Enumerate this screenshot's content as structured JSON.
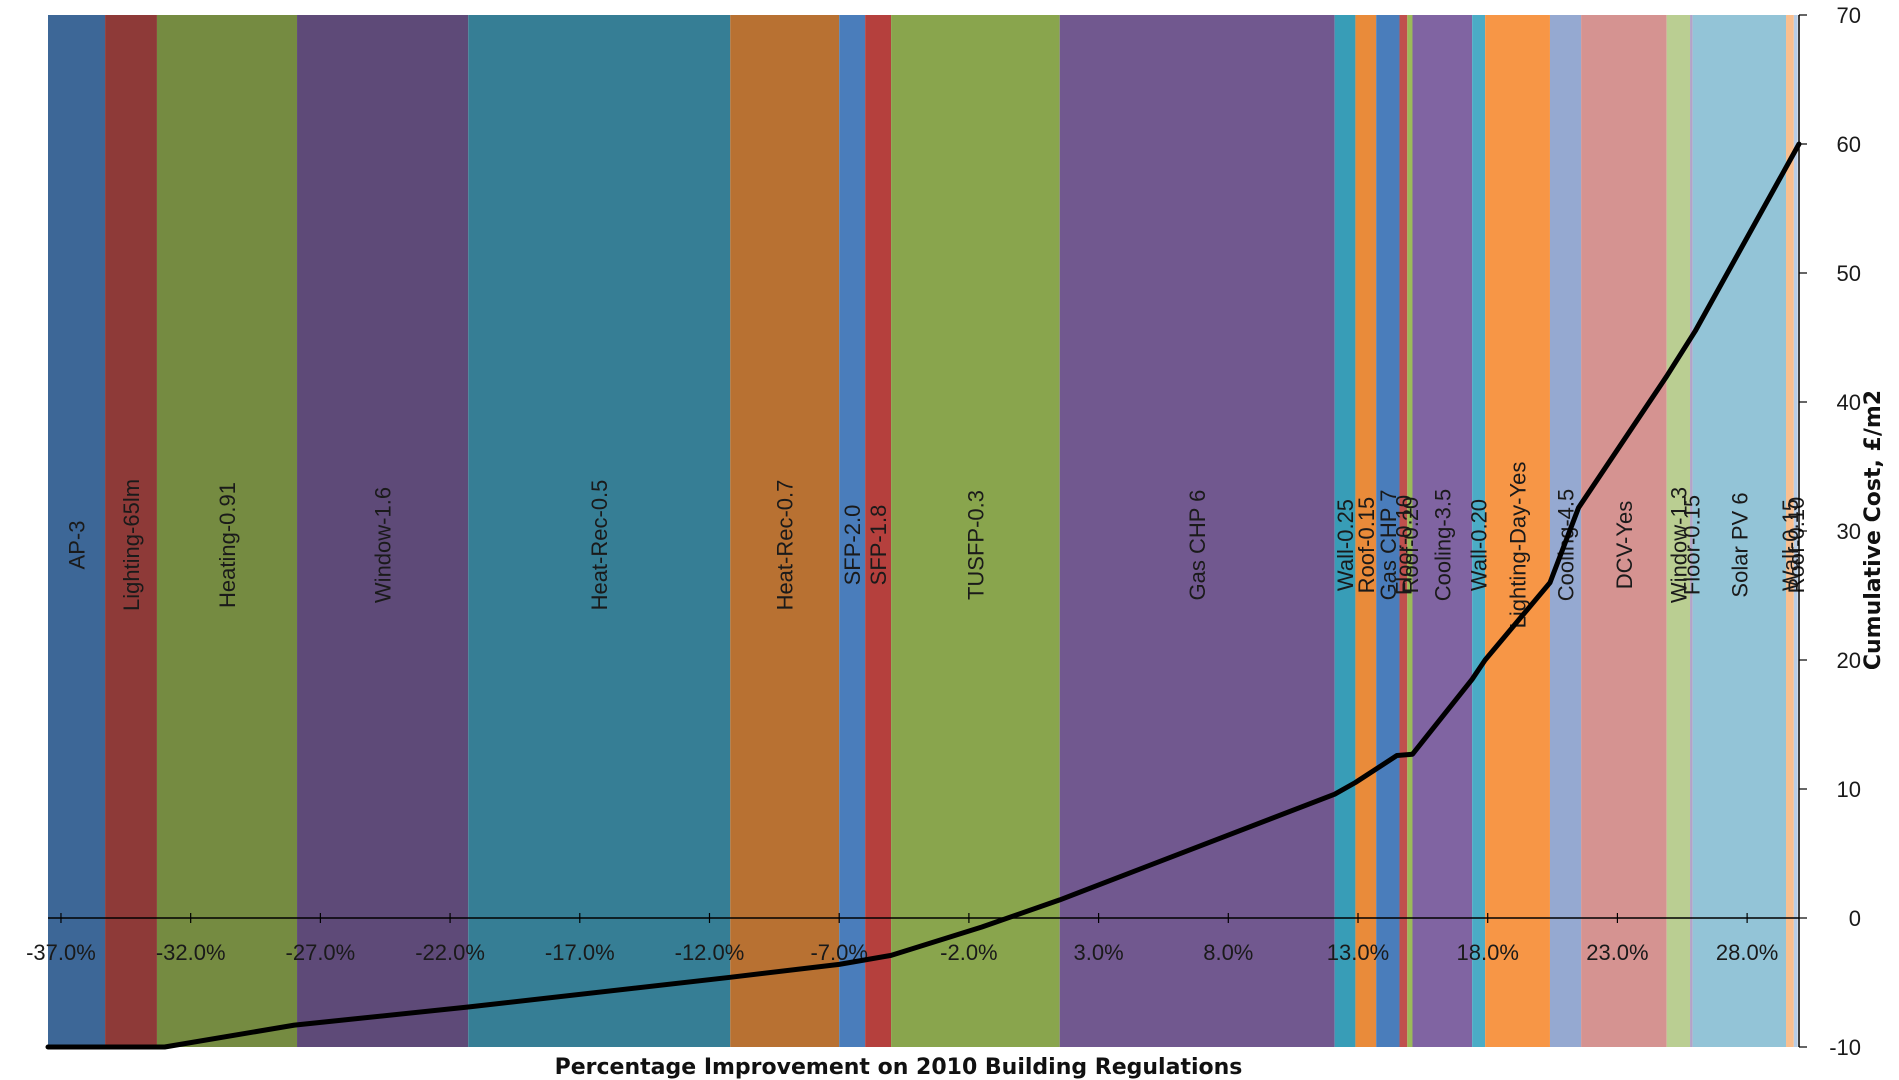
{
  "chart_data": {
    "type": "bar",
    "x_axis": {
      "title": "Percentage Improvement on 2010 Building Regulations",
      "range": [
        -37.5,
        30.0
      ],
      "ticks": [
        -37.0,
        -32.0,
        -27.0,
        -22.0,
        -17.0,
        -12.0,
        -7.0,
        -2.0,
        3.0,
        8.0,
        13.0,
        18.0,
        23.0,
        28.0
      ],
      "tick_labels": [
        "-37.0%",
        "-32.0%",
        "-27.0%",
        "-22.0%",
        "-17.0%",
        "-12.0%",
        "-7.0%",
        "-2.0%",
        "3.0%",
        "8.0%",
        "13.0%",
        "18.0%",
        "23.0%",
        "28.0%"
      ]
    },
    "y_axis": {
      "title": "Cumulative Cost, £/m2",
      "range": [
        -10,
        70
      ],
      "ticks": [
        -10,
        0,
        10,
        20,
        30,
        40,
        50,
        60,
        70
      ],
      "tick_labels": [
        "-10",
        "0",
        "10",
        "20",
        "30",
        "40",
        "50",
        "60",
        "70"
      ],
      "position": "right"
    },
    "measures": [
      {
        "label": "AP-3",
        "start": -37.5,
        "end": -35.3,
        "color": "#3D6797"
      },
      {
        "label": "Lighting-65lm",
        "start": -35.3,
        "end": -33.3,
        "color": "#8E3A38"
      },
      {
        "label": "Heating-0.91",
        "start": -33.3,
        "end": -27.9,
        "color": "#758B41"
      },
      {
        "label": "Window-1.6",
        "start": -27.9,
        "end": -21.3,
        "color": "#5E4A78"
      },
      {
        "label": "Heat-Rec-0.5",
        "start": -21.3,
        "end": -11.2,
        "color": "#367E95"
      },
      {
        "label": "Heat-Rec-0.7",
        "start": -11.2,
        "end": -7.0,
        "color": "#B87132"
      },
      {
        "label": "SFP-2.0",
        "start": -7.0,
        "end": -6.0,
        "color": "#4A7DBB"
      },
      {
        "label": "SFP-1.8",
        "start": -6.0,
        "end": -5.0,
        "color": "#B5403D"
      },
      {
        "label": "TUSFP-0.3",
        "start": -5.0,
        "end": 1.5,
        "color": "#89A54D"
      },
      {
        "label": "Gas CHP 6",
        "start": 1.5,
        "end": 12.1,
        "color": "#71588F"
      },
      {
        "label": "Wall-0.25",
        "start": 12.1,
        "end": 12.9,
        "color": "#389DB7"
      },
      {
        "label": "Roof-0.15",
        "start": 12.9,
        "end": 13.7,
        "color": "#E98B3A"
      },
      {
        "label": "Gas CHP 7",
        "start": 13.7,
        "end": 14.6,
        "color": "#4A7DBB"
      },
      {
        "label": "Floor-0.10",
        "start": 14.6,
        "end": 14.9,
        "color": "#C0504D"
      },
      {
        "label": "Roof-0.20",
        "start": 14.9,
        "end": 15.1,
        "color": "#9BBB59"
      },
      {
        "label": "Cooling-3.5",
        "start": 15.1,
        "end": 17.4,
        "color": "#8064A2"
      },
      {
        "label": "Wall-0.20",
        "start": 17.4,
        "end": 17.9,
        "color": "#4BACC6"
      },
      {
        "label": "Lighting-Day-Yes",
        "start": 17.9,
        "end": 20.4,
        "color": "#F79646"
      },
      {
        "label": "Cooling-4.5",
        "start": 20.4,
        "end": 21.6,
        "color": "#95A9D1"
      },
      {
        "label": "DCV-Yes",
        "start": 21.6,
        "end": 24.9,
        "color": "#D59391"
      },
      {
        "label": "Window-1.3",
        "start": 24.9,
        "end": 25.8,
        "color": "#BACE92"
      },
      {
        "label": "Floor-0.15",
        "start": 25.8,
        "end": 25.9,
        "color": "#B3A2C7"
      },
      {
        "label": "Solar PV 6",
        "start": 25.9,
        "end": 29.5,
        "color": "#93C4D7"
      },
      {
        "label": "Wall-0.15",
        "start": 29.5,
        "end": 29.8,
        "color": "#F9BF8F"
      },
      {
        "label": "Roof-0.10",
        "start": 29.8,
        "end": 29.95,
        "color": "#B9CDE5"
      }
    ],
    "cumulative_cost_line": {
      "color": "#000000",
      "points": [
        {
          "x": -37.5,
          "y": -10.0
        },
        {
          "x": -33.0,
          "y": -10.0
        },
        {
          "x": -28.0,
          "y": -8.3
        },
        {
          "x": -21.3,
          "y": -6.9
        },
        {
          "x": -11.2,
          "y": -4.6
        },
        {
          "x": -7.0,
          "y": -3.6
        },
        {
          "x": -5.0,
          "y": -2.9
        },
        {
          "x": -1.5,
          "y": -0.7
        },
        {
          "x": 1.5,
          "y": 1.4
        },
        {
          "x": 12.1,
          "y": 9.6
        },
        {
          "x": 12.9,
          "y": 10.5
        },
        {
          "x": 14.5,
          "y": 12.6
        },
        {
          "x": 15.1,
          "y": 12.7
        },
        {
          "x": 17.4,
          "y": 18.5
        },
        {
          "x": 17.9,
          "y": 20.0
        },
        {
          "x": 20.4,
          "y": 26.0
        },
        {
          "x": 21.5,
          "y": 31.8
        },
        {
          "x": 24.9,
          "y": 42.0
        },
        {
          "x": 26.0,
          "y": 45.5
        },
        {
          "x": 30.0,
          "y": 60.0
        }
      ]
    },
    "grid": false,
    "legend": "none"
  }
}
